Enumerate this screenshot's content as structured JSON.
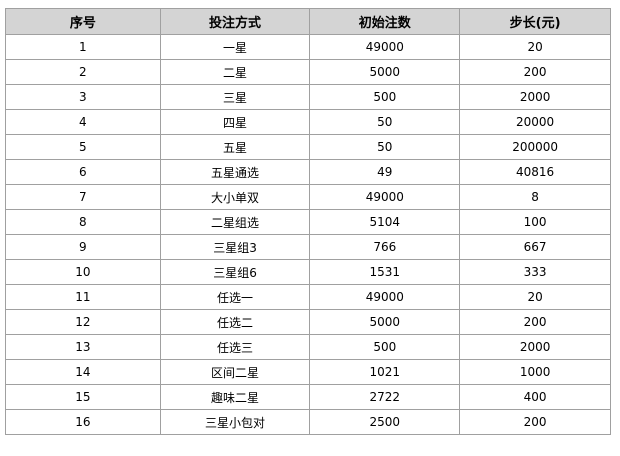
{
  "table": {
    "headers": [
      "序号",
      "投注方式",
      "初始注数",
      "步长(元)"
    ],
    "rows": [
      [
        "1",
        "一星",
        "49000",
        "20"
      ],
      [
        "2",
        "二星",
        "5000",
        "200"
      ],
      [
        "3",
        "三星",
        "500",
        "2000"
      ],
      [
        "4",
        "四星",
        "50",
        "20000"
      ],
      [
        "5",
        "五星",
        "50",
        "200000"
      ],
      [
        "6",
        "五星通选",
        "49",
        "40816"
      ],
      [
        "7",
        "大小单双",
        "49000",
        "8"
      ],
      [
        "8",
        "二星组选",
        "5104",
        "100"
      ],
      [
        "9",
        "三星组3",
        "766",
        "667"
      ],
      [
        "10",
        "三星组6",
        "1531",
        "333"
      ],
      [
        "11",
        "任选一",
        "49000",
        "20"
      ],
      [
        "12",
        "任选二",
        "5000",
        "200"
      ],
      [
        "13",
        "任选三",
        "500",
        "2000"
      ],
      [
        "14",
        "区间二星",
        "1021",
        "1000"
      ],
      [
        "15",
        "趣味二星",
        "2722",
        "400"
      ],
      [
        "16",
        "三星小包对",
        "2500",
        "200"
      ]
    ]
  }
}
